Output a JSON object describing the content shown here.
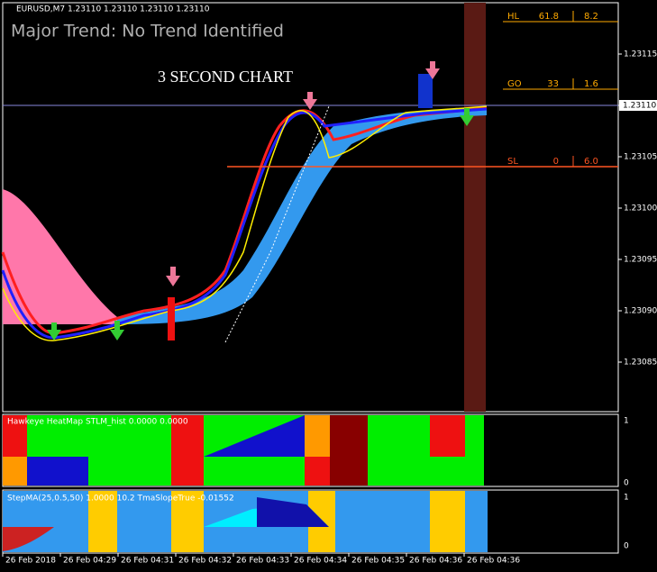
{
  "main": {
    "symbol": "EURUSD,M7  1.23110 1.23110 1.23110 1.23110",
    "trend": "Major Trend: No Trend Identified",
    "chart_label": "3 SECOND CHART",
    "levels": [
      {
        "name": "HL",
        "v1": "61.8",
        "v2": "8.2"
      },
      {
        "name": "GO",
        "v1": "33",
        "v2": "1.6"
      },
      {
        "name": "SL",
        "v1": "0",
        "v2": "6.0"
      }
    ],
    "price_ticks": [
      "1.23115",
      "1.23110",
      "1.23105",
      "1.23100",
      "1.23095",
      "1.23090",
      "1.23085"
    ],
    "current_price": "1.23110"
  },
  "heatmap": {
    "label": "Hawkeye HeatMap  STLM_hist 0.0000 0.0000",
    "ticks": [
      "1",
      "0"
    ]
  },
  "stepma": {
    "label": "StepMA(25,0.5,50) 1.0000  10.2 TmaSlopeTrue -0.01552",
    "ticks": [
      "1",
      "0"
    ]
  },
  "time_ticks": [
    "26 Feb 2018",
    "26 Feb 04:29",
    "26 Feb 04:31",
    "26 Feb 04:32",
    "26 Feb 04:33",
    "26 Feb 04:34",
    "26 Feb 04:35",
    "26 Feb 04:36",
    "26 Feb 04:36"
  ]
}
